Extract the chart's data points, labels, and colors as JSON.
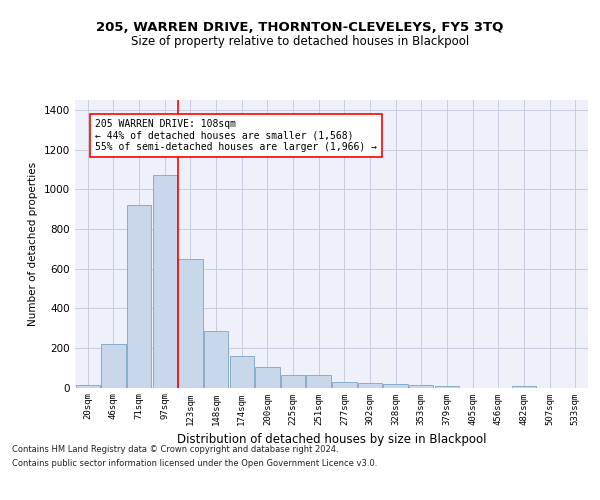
{
  "title1": "205, WARREN DRIVE, THORNTON-CLEVELEYS, FY5 3TQ",
  "title2": "Size of property relative to detached houses in Blackpool",
  "xlabel": "Distribution of detached houses by size in Blackpool",
  "ylabel": "Number of detached properties",
  "categories": [
    "20sqm",
    "46sqm",
    "71sqm",
    "97sqm",
    "123sqm",
    "148sqm",
    "174sqm",
    "200sqm",
    "225sqm",
    "251sqm",
    "277sqm",
    "302sqm",
    "328sqm",
    "353sqm",
    "379sqm",
    "405sqm",
    "456sqm",
    "482sqm",
    "507sqm",
    "533sqm"
  ],
  "values": [
    15,
    220,
    920,
    1070,
    650,
    285,
    160,
    105,
    65,
    65,
    30,
    25,
    20,
    15,
    10,
    0,
    0,
    10,
    0,
    0
  ],
  "bar_color": "#c8d8ea",
  "bar_edge_color": "#6699bb",
  "grid_color": "#c8cce0",
  "background_color": "#eef1fa",
  "red_line_x": 3.5,
  "annotation_text": "205 WARREN DRIVE: 108sqm\n← 44% of detached houses are smaller (1,568)\n55% of semi-detached houses are larger (1,966) →",
  "footer1": "Contains HM Land Registry data © Crown copyright and database right 2024.",
  "footer2": "Contains public sector information licensed under the Open Government Licence v3.0.",
  "ylim": [
    0,
    1450
  ],
  "yticks": [
    0,
    200,
    400,
    600,
    800,
    1000,
    1200,
    1400
  ]
}
